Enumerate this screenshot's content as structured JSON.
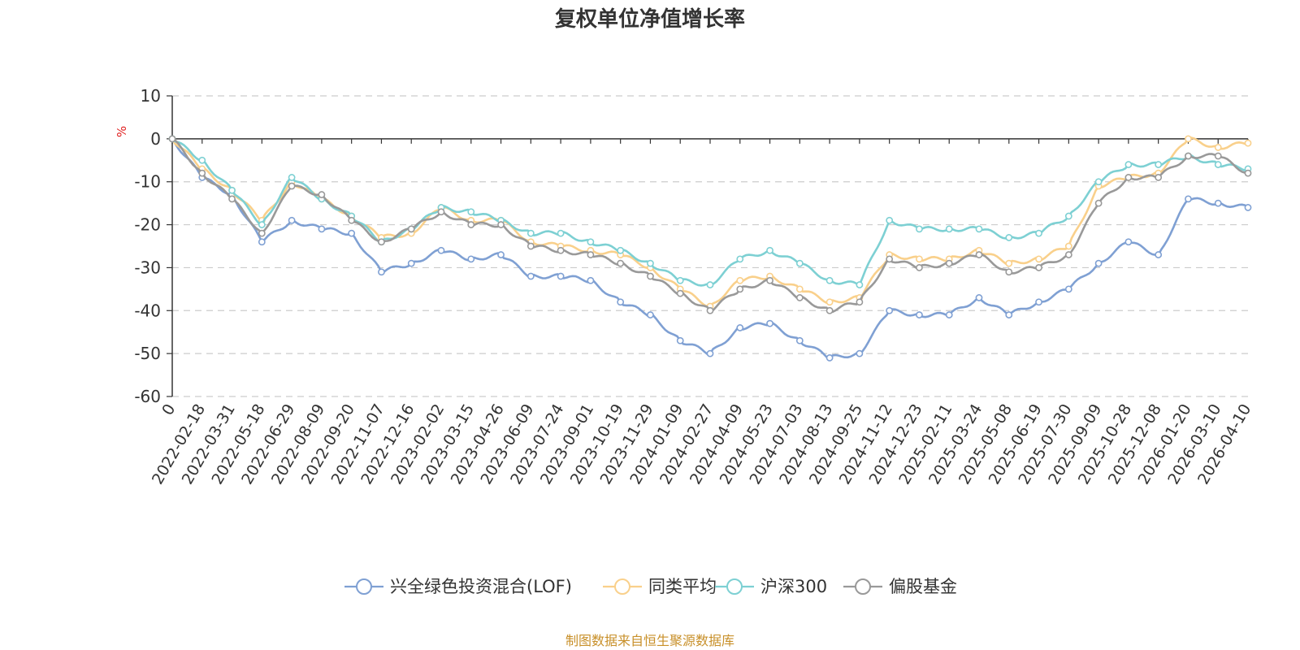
{
  "chart_data": {
    "type": "line",
    "title": "复权单位净值增长率",
    "ylabel": "%",
    "ylim": [
      -60,
      10
    ],
    "yticks": [
      10,
      0,
      -10,
      -20,
      -30,
      -40,
      -50,
      -60
    ],
    "categories": [
      "0",
      "2022-02-18",
      "2022-03-31",
      "2022-05-18",
      "2022-06-29",
      "2022-08-09",
      "2022-09-20",
      "2022-11-07",
      "2022-12-16",
      "2023-02-02",
      "2023-03-15",
      "2023-04-26",
      "2023-06-09",
      "2023-07-24",
      "2023-09-01",
      "2023-10-19",
      "2023-11-29",
      "2024-01-09",
      "2024-02-27",
      "2024-04-09",
      "2024-05-23",
      "2024-07-03",
      "2024-08-13",
      "2024-09-25",
      "2024-11-12",
      "2024-12-23",
      "2025-02-11",
      "2025-03-24",
      "2025-05-08",
      "2025-06-19",
      "2025-07-30",
      "2025-09-09",
      "2025-10-28",
      "2025-12-08",
      "2026-01-20",
      "2026-03-10",
      "2026-04-10"
    ],
    "series": [
      {
        "name": "兴全绿色投资混合(LOF)",
        "color": "#7fa0d3",
        "values": [
          0,
          -9,
          -13,
          -24,
          -19,
          -21,
          -22,
          -31,
          -29,
          -26,
          -28,
          -27,
          -32,
          -32,
          -33,
          -38,
          -41,
          -47,
          -50,
          -44,
          -43,
          -47,
          -51,
          -50,
          -40,
          -41,
          -41,
          -37,
          -41,
          -38,
          -35,
          -29,
          -24,
          -27,
          -14,
          -15,
          -16
        ]
      },
      {
        "name": "同类平均",
        "color": "#f9d08b",
        "values": [
          0,
          -7,
          -12,
          -19,
          -10,
          -14,
          -18,
          -23,
          -22,
          -16,
          -19,
          -19,
          -24,
          -25,
          -26,
          -27,
          -30,
          -35,
          -39,
          -33,
          -32,
          -35,
          -38,
          -37,
          -27,
          -28,
          -28,
          -26,
          -29,
          -28,
          -25,
          -11,
          -9,
          -8,
          0,
          -2,
          -1
        ]
      },
      {
        "name": "沪深300",
        "color": "#7dd0d3",
        "values": [
          0,
          -5,
          -12,
          -20,
          -9,
          -14,
          -18,
          -24,
          -21,
          -16,
          -17,
          -19,
          -22,
          -22,
          -24,
          -26,
          -29,
          -33,
          -34,
          -28,
          -26,
          -29,
          -33,
          -34,
          -19,
          -21,
          -21,
          -21,
          -23,
          -22,
          -18,
          -10,
          -6,
          -6,
          -4,
          -6,
          -7
        ]
      },
      {
        "name": "偏股基金",
        "color": "#999999",
        "values": [
          0,
          -8,
          -14,
          -22,
          -11,
          -13,
          -19,
          -24,
          -21,
          -17,
          -20,
          -20,
          -25,
          -26,
          -27,
          -29,
          -32,
          -36,
          -40,
          -35,
          -33,
          -37,
          -40,
          -38,
          -28,
          -30,
          -29,
          -27,
          -31,
          -30,
          -27,
          -15,
          -9,
          -9,
          -4,
          -4,
          -8
        ]
      }
    ]
  },
  "source_text": "制图数据来自恒生聚源数据库"
}
